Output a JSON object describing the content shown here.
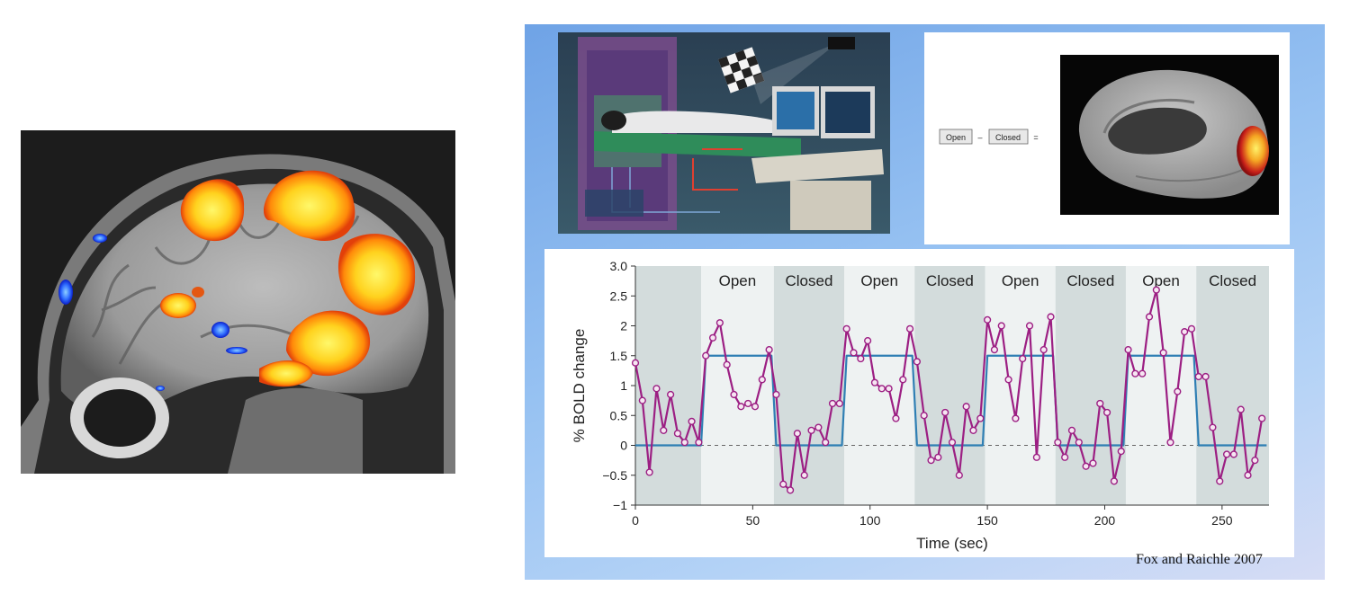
{
  "brain_equation": {
    "open_label": "Open",
    "minus": "–",
    "closed_label": "Closed",
    "equals": "="
  },
  "citation": "Fox and Raichle 2007",
  "chart_data": {
    "type": "line",
    "xlabel": "Time (sec)",
    "ylabel": "% BOLD change",
    "xlim": [
      0,
      270
    ],
    "ylim": [
      -1,
      3
    ],
    "x_ticks": [
      0,
      50,
      100,
      150,
      200,
      250
    ],
    "y_ticks": [
      -1,
      -0.5,
      0,
      0.5,
      1,
      1.5,
      2,
      2.5,
      3
    ],
    "y_tick_labels": [
      "−1",
      "−0.5",
      "0",
      "0.5",
      "1",
      "1.5",
      "2",
      "2.5",
      "3.0"
    ],
    "baseline_dashed": 0,
    "condition_blocks": [
      {
        "label": "",
        "start": 0,
        "end": 28,
        "shade": "dark"
      },
      {
        "label": "Open",
        "start": 28,
        "end": 59,
        "shade": "light"
      },
      {
        "label": "Closed",
        "start": 59,
        "end": 89,
        "shade": "dark"
      },
      {
        "label": "Open",
        "start": 89,
        "end": 119,
        "shade": "light"
      },
      {
        "label": "Closed",
        "start": 119,
        "end": 149,
        "shade": "dark"
      },
      {
        "label": "Open",
        "start": 149,
        "end": 179,
        "shade": "light"
      },
      {
        "label": "Closed",
        "start": 179,
        "end": 209,
        "shade": "dark"
      },
      {
        "label": "Open",
        "start": 209,
        "end": 239,
        "shade": "light"
      },
      {
        "label": "Closed",
        "start": 239,
        "end": 270,
        "shade": "dark"
      }
    ],
    "series": [
      {
        "color": "#9c1f83",
        "x": [
          0,
          3,
          6,
          9,
          12,
          15,
          18,
          21,
          24,
          27,
          30,
          33,
          36,
          39,
          42,
          45,
          48,
          51,
          54,
          57,
          60,
          63,
          66,
          69,
          72,
          75,
          78,
          81,
          84,
          87,
          90,
          93,
          96,
          99,
          102,
          105,
          108,
          111,
          114,
          117,
          120,
          123,
          126,
          129,
          132,
          135,
          138,
          141,
          144,
          147,
          150,
          153,
          156,
          159,
          162,
          165,
          168,
          171,
          174,
          177,
          180,
          183,
          186,
          189,
          192,
          195,
          198,
          201,
          204,
          207,
          210,
          213,
          216,
          219,
          222,
          225,
          228,
          231,
          234,
          237,
          240,
          243,
          246,
          249,
          252,
          255,
          258,
          261,
          264,
          267
        ],
        "values": [
          1.38,
          0.75,
          -0.45,
          0.95,
          0.25,
          0.85,
          0.2,
          0.05,
          0.4,
          0.05,
          1.5,
          1.8,
          2.05,
          1.35,
          0.85,
          0.65,
          0.7,
          0.65,
          1.1,
          1.6,
          0.85,
          -0.65,
          -0.75,
          0.2,
          -0.5,
          0.25,
          0.3,
          0.05,
          0.7,
          0.7,
          1.95,
          1.55,
          1.45,
          1.75,
          1.05,
          0.95,
          0.95,
          0.45,
          1.1,
          1.95,
          1.4,
          0.5,
          -0.25,
          -0.2,
          0.55,
          0.05,
          -0.5,
          0.65,
          0.25,
          0.45,
          2.1,
          1.6,
          2.0,
          1.1,
          0.45,
          1.45,
          2.0,
          -0.2,
          1.6,
          2.15,
          0.05,
          -0.2,
          0.25,
          0.05,
          -0.35,
          -0.3,
          0.7,
          0.55,
          -0.6,
          -0.1,
          1.6,
          1.2,
          1.2,
          2.15,
          2.6,
          1.55,
          0.05,
          0.9,
          1.9,
          1.95,
          1.15,
          1.15,
          0.3,
          -0.6,
          -0.15,
          -0.15,
          0.6,
          -0.5,
          -0.25,
          0.45
        ]
      },
      {
        "color": "#2f7fb4",
        "x": [
          0,
          28,
          29,
          30,
          58,
          59,
          60,
          88,
          89,
          90,
          118,
          119,
          120,
          148,
          149,
          150,
          178,
          179,
          180,
          208,
          209,
          210,
          238,
          239,
          240,
          269
        ],
        "values": [
          0,
          0,
          0.75,
          1.5,
          1.5,
          0.75,
          0,
          0,
          0.75,
          1.5,
          1.5,
          0.75,
          0,
          0,
          0.75,
          1.5,
          1.5,
          0.75,
          0,
          0,
          0.75,
          1.5,
          1.5,
          0.75,
          0,
          0
        ]
      }
    ]
  }
}
